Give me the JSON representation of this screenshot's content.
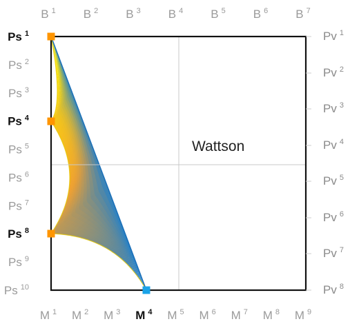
{
  "labels": {
    "top": [
      "B",
      "B",
      "B",
      "B",
      "B",
      "B",
      "B"
    ],
    "top_sup": [
      "1",
      "2",
      "3",
      "4",
      "5",
      "6",
      "7"
    ],
    "bottom": [
      "M",
      "M",
      "M",
      "M",
      "M",
      "M",
      "M",
      "M",
      "M"
    ],
    "bottom_sup": [
      "1",
      "2",
      "3",
      "4",
      "5",
      "6",
      "7",
      "8",
      "9"
    ],
    "bottom_bold": [
      false,
      false,
      false,
      true,
      false,
      false,
      false,
      false,
      false
    ],
    "left": [
      "Ps",
      "Ps",
      "Ps",
      "Ps",
      "Ps",
      "Ps",
      "Ps",
      "Ps",
      "Ps",
      "Ps"
    ],
    "left_sup": [
      "1",
      "2",
      "3",
      "4",
      "5",
      "6",
      "7",
      "8",
      "9",
      "10"
    ],
    "left_bold": [
      true,
      false,
      false,
      true,
      false,
      false,
      false,
      true,
      false,
      false
    ],
    "right": [
      "Pv",
      "Pv",
      "Pv",
      "Pv",
      "Pv",
      "Pv",
      "Pv",
      "Pv"
    ],
    "right_sup": [
      "1",
      "2",
      "3",
      "4",
      "5",
      "6",
      "7",
      "8"
    ]
  },
  "annotation": "Wattson",
  "markers": [
    {
      "name": "marker-ps1",
      "color": "#ff9500"
    },
    {
      "name": "marker-ps4",
      "color": "#ff9500"
    },
    {
      "name": "marker-ps8",
      "color": "#ff9500"
    },
    {
      "name": "marker-m4",
      "color": "#1aa3e8"
    }
  ],
  "colors": {
    "frame": "#111111",
    "gridline": "#c8c8c8",
    "fan_start": "#ffee00",
    "fan_mid": "#f0a030",
    "fan_end": "#1a7fd0"
  }
}
